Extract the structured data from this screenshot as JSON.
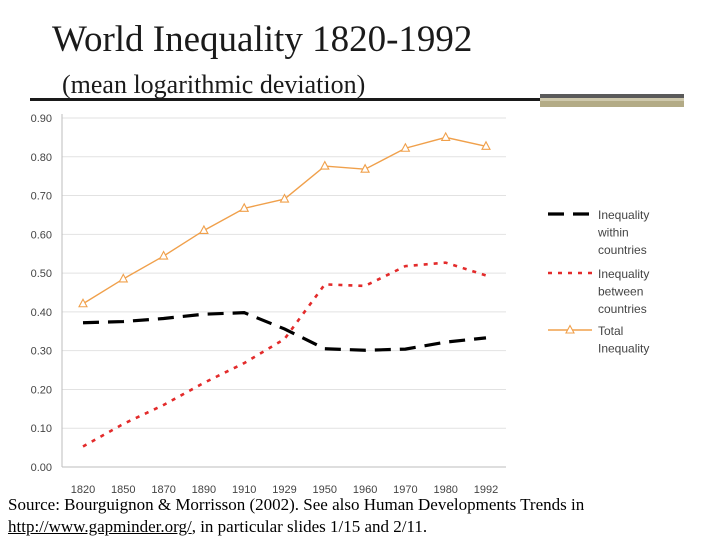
{
  "slide": {
    "title": "World Inequality 1820-1992",
    "subtitle": "(mean logarithmic deviation)",
    "source_text": "Source: Bourguignon & Morrisson (2002). See also Human Developments Trends in",
    "link_text": "http://www.gapminder.org/",
    "source_tail": ", in particular slides 1/15 and 2/11.",
    "accent_colors": {
      "dark": "#5a5a5a",
      "light": "#cfc9ad",
      "tan": "#b3ab86"
    }
  },
  "chart_data": {
    "type": "line",
    "title": "",
    "xlabel": "",
    "ylabel": "",
    "categories": [
      "1820",
      "1850",
      "1870",
      "1890",
      "1910",
      "1929",
      "1950",
      "1960",
      "1970",
      "1980",
      "1992"
    ],
    "ylim": [
      0,
      0.9
    ],
    "yticks": [
      "0.00",
      "0.10",
      "0.20",
      "0.30",
      "0.40",
      "0.50",
      "0.60",
      "0.70",
      "0.80",
      "0.90"
    ],
    "grid": true,
    "legend_position": "right",
    "series": [
      {
        "name": "Inequality within countries",
        "legend_lines": [
          "Inequality",
          "within",
          "countries"
        ],
        "values": [
          0.372,
          0.375,
          0.383,
          0.394,
          0.398,
          0.356,
          0.305,
          0.301,
          0.304,
          0.322,
          0.333
        ],
        "color": "#000000",
        "style": "dashed"
      },
      {
        "name": "Inequality between countries",
        "legend_lines": [
          "Inequality",
          "between",
          "countries"
        ],
        "values": [
          0.053,
          0.111,
          0.16,
          0.217,
          0.268,
          0.33,
          0.471,
          0.467,
          0.518,
          0.527,
          0.494
        ],
        "color": "#e32b2b",
        "style": "dotted"
      },
      {
        "name": "Total Inequality",
        "legend_lines": [
          "Total",
          "Inequality"
        ],
        "values": [
          0.421,
          0.485,
          0.544,
          0.61,
          0.667,
          0.691,
          0.776,
          0.768,
          0.822,
          0.85,
          0.827
        ],
        "color": "#f0a04b",
        "style": "solid-triangle"
      }
    ]
  }
}
